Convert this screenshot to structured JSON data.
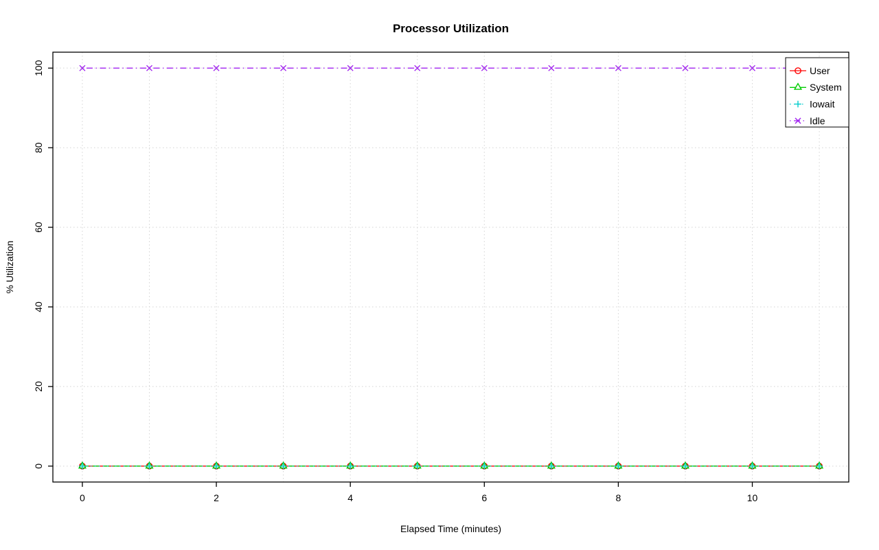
{
  "page": {
    "background": "#FFFFFF",
    "axis_color": "#000000"
  },
  "chart_data": {
    "type": "line",
    "title": "Processor Utilization",
    "xlabel": "Elapsed Time (minutes)",
    "ylabel": "% Utilization",
    "x": [
      0,
      1,
      2,
      3,
      4,
      5,
      6,
      7,
      8,
      9,
      10,
      11
    ],
    "series": [
      {
        "name": "User",
        "color": "#FF0000",
        "marker": "circle",
        "linetype": "solid",
        "values": [
          0,
          0,
          0,
          0,
          0,
          0,
          0,
          0,
          0,
          0,
          0,
          0
        ]
      },
      {
        "name": "System",
        "color": "#00CC00",
        "marker": "triangle",
        "linetype": "dashed",
        "values": [
          0,
          0,
          0,
          0,
          0,
          0,
          0,
          0,
          0,
          0,
          0,
          0
        ]
      },
      {
        "name": "Iowait",
        "color": "#00CCCC",
        "marker": "plus",
        "linetype": "dotted",
        "values": [
          0,
          0,
          0,
          0,
          0,
          0,
          0,
          0,
          0,
          0,
          0,
          0
        ]
      },
      {
        "name": "Idle",
        "color": "#A020F0",
        "marker": "x",
        "linetype": "dotdash",
        "values": [
          100,
          100,
          100,
          100,
          100,
          100,
          100,
          100,
          100,
          100,
          100,
          100
        ]
      }
    ],
    "xlim": [
      0,
      11
    ],
    "ylim": [
      0,
      100
    ],
    "x_ticks": [
      0,
      2,
      4,
      6,
      8,
      10
    ],
    "y_ticks": [
      0,
      20,
      40,
      60,
      80,
      100
    ],
    "grid": {
      "show": true,
      "x_lines": [
        0,
        1,
        2,
        3,
        4,
        5,
        6,
        7,
        8,
        9,
        10,
        11
      ],
      "y_lines": [
        0,
        20,
        40,
        60,
        80,
        100
      ],
      "color": "#D3D3D3",
      "style": "dotted"
    },
    "legend": {
      "position": "top-right",
      "items": [
        "User",
        "System",
        "Iowait",
        "Idle"
      ]
    }
  }
}
